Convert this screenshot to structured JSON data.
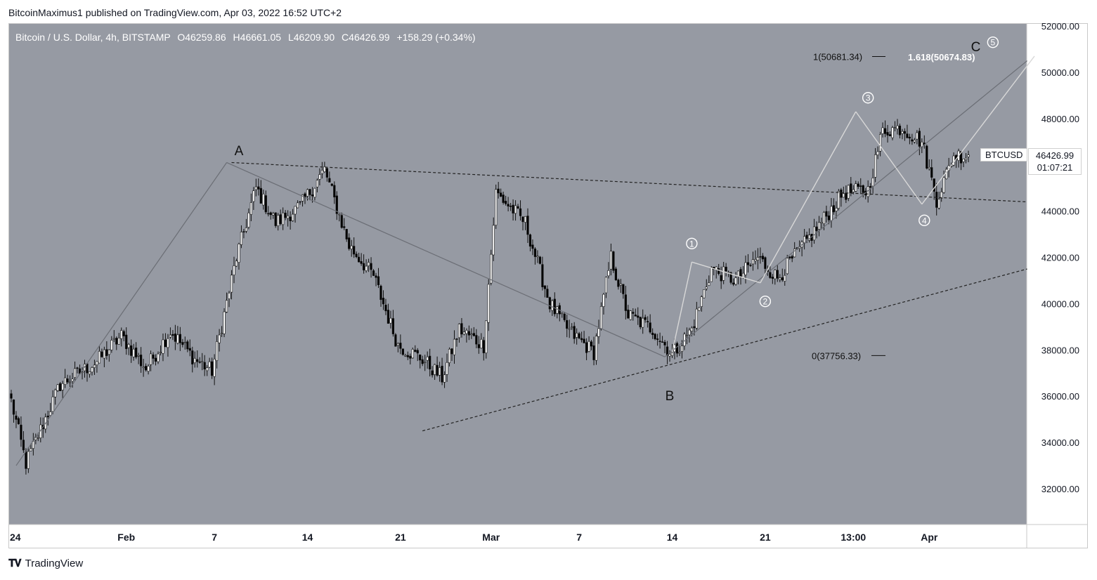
{
  "publisher": "BitcoinMaximus1 published on TradingView.com, Apr 03, 2022 16:52 UTC+2",
  "footer_brand": "TradingView",
  "legend": {
    "symbol": "Bitcoin / U.S. Dollar, 4h, BITSTAMP",
    "open": "46259.86",
    "high": "46661.05",
    "low": "46209.90",
    "close": "46426.99",
    "change": "+158.29 (+0.34%)"
  },
  "price_tag": {
    "symbol": "BTCUSD",
    "price": "46426.99",
    "countdown": "01:07:21"
  },
  "currency": "USD",
  "colors": {
    "background": "#969aa3",
    "candle_up": "#ffffff",
    "candle_down": "#000000",
    "wave_line": "#d8d8d8",
    "trend_line": "#6b6e75"
  },
  "chart_data": {
    "type": "candlestick",
    "ylim": [
      30000,
      52000
    ],
    "y_ticks": [
      32000,
      34000,
      36000,
      38000,
      40000,
      42000,
      44000,
      46000,
      48000,
      50000,
      52000
    ],
    "y_tick_labels": [
      "32000.00",
      "34000.00",
      "36000.00",
      "38000.00",
      "40000.00",
      "42000.00",
      "44000.00",
      "46000.00",
      "48000.00",
      "50000.00",
      "52000.00"
    ],
    "x_tick_labels": [
      "24",
      "Feb",
      "7",
      "14",
      "21",
      "Mar",
      "7",
      "14",
      "21",
      "13:00",
      "Apr"
    ],
    "x_tick_index": [
      0,
      47,
      83,
      121,
      159,
      196,
      232,
      270,
      308,
      344,
      375
    ],
    "candle_count": 392,
    "path_points": [
      [
        0,
        35800
      ],
      [
        6,
        33100
      ],
      [
        20,
        36500
      ],
      [
        35,
        37500
      ],
      [
        45,
        38600
      ],
      [
        55,
        37200
      ],
      [
        65,
        38800
      ],
      [
        75,
        37600
      ],
      [
        82,
        37100
      ],
      [
        92,
        42000
      ],
      [
        100,
        45000
      ],
      [
        108,
        43500
      ],
      [
        118,
        44200
      ],
      [
        128,
        45800
      ],
      [
        138,
        42500
      ],
      [
        148,
        41200
      ],
      [
        158,
        38200
      ],
      [
        168,
        37600
      ],
      [
        176,
        36800
      ],
      [
        183,
        38900
      ],
      [
        193,
        38200
      ],
      [
        198,
        44800
      ],
      [
        210,
        43500
      ],
      [
        220,
        40000
      ],
      [
        228,
        38800
      ],
      [
        238,
        37900
      ],
      [
        245,
        42000
      ],
      [
        252,
        39500
      ],
      [
        262,
        38900
      ],
      [
        270,
        37800
      ],
      [
        278,
        38900
      ],
      [
        286,
        41500
      ],
      [
        296,
        41000
      ],
      [
        305,
        42000
      ],
      [
        313,
        41100
      ],
      [
        322,
        42300
      ],
      [
        333,
        43800
      ],
      [
        340,
        44800
      ],
      [
        350,
        44900
      ],
      [
        356,
        47500
      ],
      [
        364,
        47600
      ],
      [
        372,
        47000
      ],
      [
        378,
        44500
      ],
      [
        385,
        46400
      ],
      [
        391,
        46427
      ]
    ],
    "annotations": {
      "wave_labels": [
        {
          "text": "A",
          "i": 93,
          "price": 46600
        },
        {
          "text": "B",
          "i": 269,
          "price": 36000
        },
        {
          "text": "C",
          "i": 394,
          "price": 51100
        },
        {
          "text": "1",
          "i": 278,
          "price": 42600,
          "circled": true
        },
        {
          "text": "2",
          "i": 308,
          "price": 40100,
          "circled": true
        },
        {
          "text": "3",
          "i": 350,
          "price": 48900,
          "circled": true
        },
        {
          "text": "4",
          "i": 373,
          "price": 43600,
          "circled": true
        },
        {
          "text": "5",
          "i": 401,
          "price": 51300,
          "circled": true
        }
      ],
      "fib_labels": [
        {
          "text": "1(50681.34)",
          "price": 50681.34
        },
        {
          "text": "1.618(50674.83)",
          "price": 50674.83
        },
        {
          "text": "0(37756.33)",
          "price": 37756.33
        }
      ]
    }
  }
}
